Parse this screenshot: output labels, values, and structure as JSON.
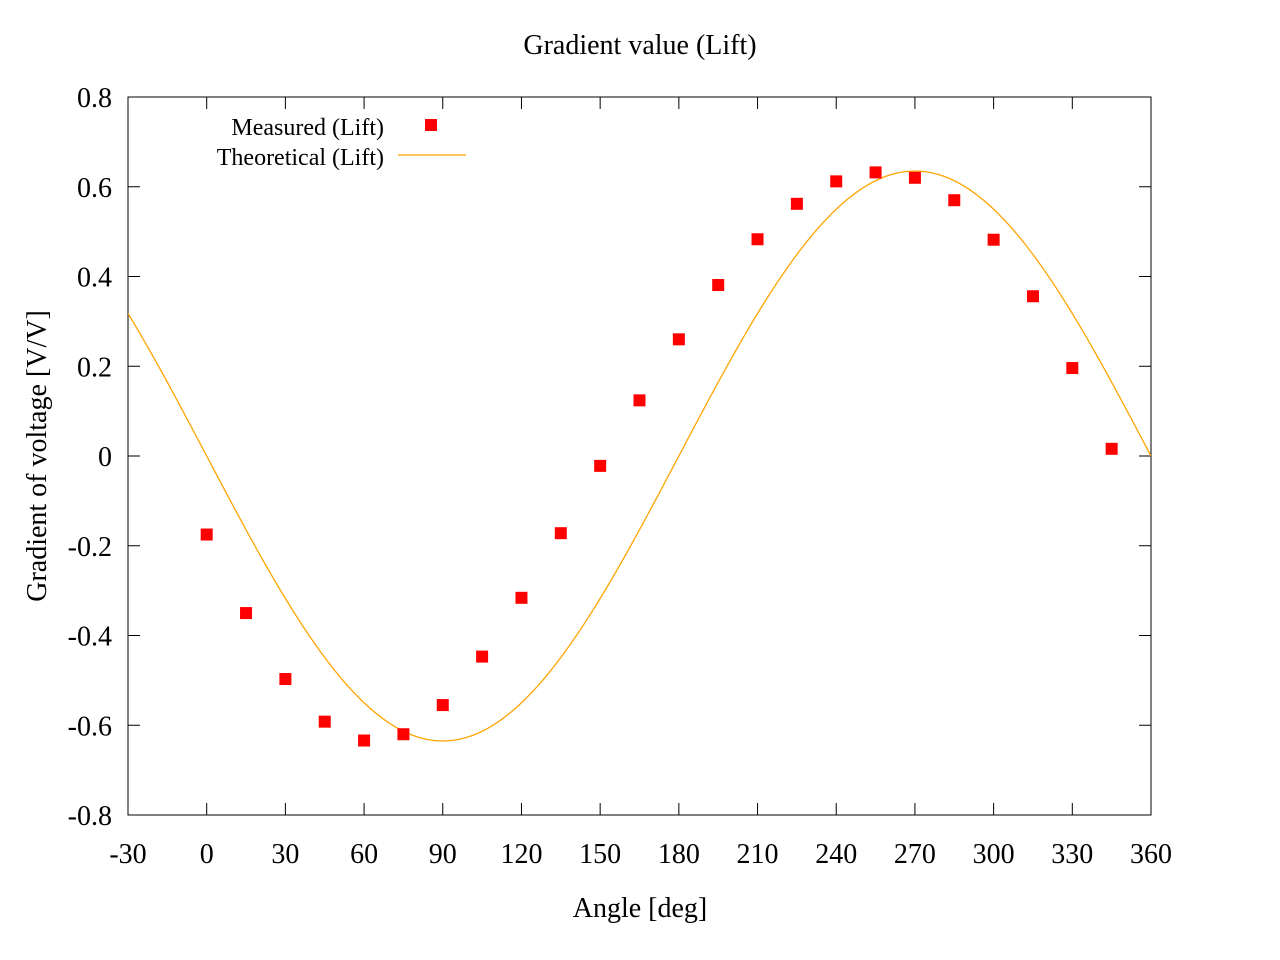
{
  "chart_data": {
    "type": "scatter",
    "title": "Gradient value (Lift)",
    "xlabel": "Angle [deg]",
    "ylabel": "Gradient of voltage [V/V]",
    "xlim": [
      -30,
      360
    ],
    "ylim": [
      -0.8,
      0.8
    ],
    "xticks": [
      -30,
      0,
      30,
      60,
      90,
      120,
      150,
      180,
      210,
      240,
      270,
      300,
      330,
      360
    ],
    "yticks": [
      -0.8,
      -0.6,
      -0.4,
      -0.2,
      0,
      0.2,
      0.4,
      0.6,
      0.8
    ],
    "xtick_labels": [
      "-30",
      "0",
      "30",
      "60",
      "90",
      "120",
      "150",
      "180",
      "210",
      "240",
      "270",
      "300",
      "330",
      "360"
    ],
    "ytick_labels": [
      "-0.8",
      "-0.6",
      "-0.4",
      "-0.2",
      "0",
      "0.2",
      "0.4",
      "0.6",
      "0.8"
    ],
    "grid": false,
    "legend_position": "top-left",
    "series": [
      {
        "name": "Measured (Lift)",
        "kind": "points",
        "color": "#ff0000",
        "marker": "square",
        "x": [
          0,
          15,
          30,
          45,
          60,
          75,
          90,
          105,
          120,
          135,
          150,
          165,
          180,
          195,
          210,
          225,
          240,
          255,
          270,
          285,
          300,
          315,
          330,
          345
        ],
        "y": [
          -0.175,
          -0.35,
          -0.497,
          -0.592,
          -0.634,
          -0.62,
          -0.555,
          -0.447,
          -0.316,
          -0.172,
          -0.022,
          0.124,
          0.26,
          0.381,
          0.483,
          0.562,
          0.612,
          0.632,
          0.62,
          0.57,
          0.482,
          0.356,
          0.196,
          0.016
        ]
      },
      {
        "name": "Theoretical (Lift)",
        "kind": "line",
        "color": "#ffa500",
        "amplitude": 0.635,
        "function": "y = -0.635 * sin(x)",
        "x": [
          -30,
          -20,
          -10,
          0,
          10,
          20,
          30,
          40,
          50,
          60,
          70,
          80,
          90,
          100,
          110,
          120,
          130,
          140,
          150,
          160,
          170,
          180,
          190,
          200,
          210,
          220,
          230,
          240,
          250,
          260,
          270,
          280,
          290,
          300,
          310,
          320,
          330,
          340,
          350,
          360
        ],
        "y": [
          0.318,
          0.217,
          0.11,
          0.0,
          -0.11,
          -0.217,
          -0.318,
          -0.408,
          -0.486,
          -0.55,
          -0.597,
          -0.625,
          -0.635,
          -0.625,
          -0.597,
          -0.55,
          -0.486,
          -0.408,
          -0.318,
          -0.217,
          -0.11,
          0.0,
          0.11,
          0.217,
          0.318,
          0.408,
          0.486,
          0.55,
          0.597,
          0.625,
          0.635,
          0.625,
          0.597,
          0.55,
          0.486,
          0.408,
          0.318,
          0.217,
          0.11,
          0.0
        ]
      }
    ]
  }
}
